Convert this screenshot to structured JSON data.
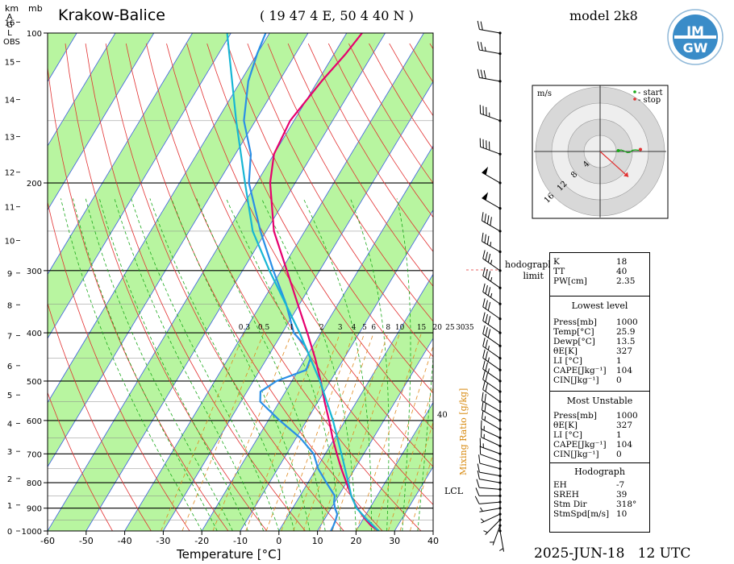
{
  "header": {
    "station": "Krakow-Balice",
    "coords": "( 19 47 4 E, 50 4 40 N )",
    "model": "model 2k8",
    "logo_text": "IMGW",
    "date": "2025-JUN-18",
    "time": "12 UTC"
  },
  "axes": {
    "km_label": "km",
    "agl_label": [
      "A",
      "G",
      "L"
    ],
    "obs_label": "OBS",
    "mb_label": "mb",
    "xlabel": "Temperature [°C]",
    "mixing_label": "Mixing Ratio [g/kg]"
  },
  "chart_data": {
    "type": "line",
    "title": "Krakow-Balice",
    "xlabel": "Temperature [°C]",
    "temp_ticks": [
      -60,
      -50,
      -40,
      -30,
      -20,
      -10,
      0,
      10,
      20,
      30,
      40
    ],
    "pressure_labels": [
      1000,
      900,
      800,
      700,
      600,
      500,
      400,
      300,
      200,
      100
    ],
    "height_ticks_km": [
      0,
      1,
      2,
      3,
      4,
      5,
      6,
      7,
      8,
      9,
      10,
      11,
      12,
      13,
      14,
      15,
      16
    ],
    "mixing_ratio_labels": [
      "0.3",
      "0.5",
      "1",
      "2",
      "3",
      "4",
      "5",
      "6",
      "8",
      "10",
      "15",
      "20",
      "25",
      "30",
      "35"
    ],
    "pressure_range_mb": [
      1000,
      100
    ],
    "temp_range_c": [
      -60,
      40
    ],
    "series": [
      {
        "color": "#e6006e",
        "points_p_t": [
          [
            1000,
            25.9
          ],
          [
            975,
            23
          ],
          [
            950,
            20.8
          ],
          [
            925,
            18.8
          ],
          [
            900,
            16.8
          ],
          [
            875,
            15
          ],
          [
            850,
            13.3
          ],
          [
            800,
            10
          ],
          [
            750,
            6.5
          ],
          [
            700,
            3
          ],
          [
            650,
            -0.6
          ],
          [
            600,
            -4.2
          ],
          [
            550,
            -8.3
          ],
          [
            500,
            -12.5
          ],
          [
            450,
            -17.5
          ],
          [
            400,
            -23.5
          ],
          [
            350,
            -30.5
          ],
          [
            300,
            -38.5
          ],
          [
            250,
            -48
          ],
          [
            200,
            -56.5
          ],
          [
            175,
            -60
          ],
          [
            150,
            -61
          ],
          [
            125,
            -59
          ],
          [
            110,
            -57
          ],
          [
            100,
            -56
          ]
        ]
      },
      {
        "color": "#2a8fe6",
        "points_p_t": [
          [
            1000,
            13.5
          ],
          [
            975,
            13.3
          ],
          [
            950,
            13
          ],
          [
            925,
            12.5
          ],
          [
            900,
            11
          ],
          [
            875,
            9.8
          ],
          [
            850,
            9
          ],
          [
            800,
            4.8
          ],
          [
            750,
            0.5
          ],
          [
            700,
            -3
          ],
          [
            650,
            -9
          ],
          [
            600,
            -17
          ],
          [
            550,
            -25
          ],
          [
            525,
            -26.5
          ],
          [
            500,
            -24
          ],
          [
            475,
            -18
          ],
          [
            450,
            -18.7
          ],
          [
            425,
            -22
          ],
          [
            400,
            -27
          ],
          [
            350,
            -33.5
          ],
          [
            300,
            -42
          ],
          [
            250,
            -51.5
          ],
          [
            200,
            -62
          ],
          [
            175,
            -66
          ],
          [
            150,
            -73
          ],
          [
            125,
            -78
          ],
          [
            110,
            -80
          ],
          [
            100,
            -81
          ]
        ]
      },
      {
        "color": "#17b6d4",
        "points_p_t": [
          [
            1000,
            25.9
          ],
          [
            950,
            21.2
          ],
          [
            900,
            16.6
          ],
          [
            850,
            13.3
          ],
          [
            800,
            10.5
          ],
          [
            700,
            4.2
          ],
          [
            600,
            -3.2
          ],
          [
            500,
            -12.7
          ],
          [
            400,
            -25.5
          ],
          [
            300,
            -43
          ],
          [
            250,
            -53.5
          ],
          [
            200,
            -63
          ],
          [
            150,
            -75
          ],
          [
            100,
            -91
          ]
        ]
      }
    ]
  },
  "hodograph": {
    "unit": "m/s",
    "start_label": "- start",
    "stop_label": "- stop",
    "ring_labels": [
      "4",
      "8",
      "12",
      "16"
    ],
    "limit_label": [
      "hodograph",
      "limit"
    ],
    "trace_uv": [
      [
        0.5,
        0.2
      ],
      [
        1.2,
        0.4
      ],
      [
        2.0,
        0.1
      ],
      [
        2.8,
        -0.3
      ],
      [
        3.4,
        -0.2
      ],
      [
        4.0,
        0.3
      ],
      [
        4.8,
        0.4
      ],
      [
        5.5,
        0.3
      ],
      [
        6.0,
        0.5
      ]
    ],
    "storm_motion_uv": [
      7.0,
      -6.3
    ]
  },
  "indices": {
    "block1": [
      {
        "label": "K",
        "value": "18"
      },
      {
        "label": "TT",
        "value": "40"
      },
      {
        "label": "PW[cm]",
        "value": "2.35"
      }
    ],
    "lowest_title": "Lowest level",
    "lowest": [
      {
        "label": "Press[mb]",
        "value": "1000"
      },
      {
        "label": "Temp[°C]",
        "value": "25.9"
      },
      {
        "label": "Dewp[°C]",
        "value": "13.5"
      },
      {
        "label": "θE[K]",
        "value": "327"
      },
      {
        "label": "LI [°C]",
        "value": "1"
      },
      {
        "label": "CAPE[Jkg⁻¹]",
        "value": "104"
      },
      {
        "label": "CIN[Jkg⁻¹]",
        "value": "0"
      }
    ],
    "unstable_title": "Most Unstable",
    "unstable": [
      {
        "label": "Press[mb]",
        "value": "1000"
      },
      {
        "label": "θE[K]",
        "value": "327"
      },
      {
        "label": "LI [°C]",
        "value": "1"
      },
      {
        "label": "CAPE[Jkg⁻¹]",
        "value": "104"
      },
      {
        "label": "CIN[Jkg⁻¹]",
        "value": "0"
      }
    ],
    "hodo_title": "Hodograph",
    "hodo": [
      {
        "label": "EH",
        "value": "-7"
      },
      {
        "label": "SREH",
        "value": "39"
      },
      {
        "label": "Stm Dir",
        "value": "318°"
      },
      {
        "label": "StmSpd[m/s]",
        "value": "10"
      }
    ]
  },
  "side_labels": {
    "lcl": "LCL",
    "forty": "40"
  },
  "winds": [
    {
      "p": 1000,
      "dir": 170,
      "spd": 5
    },
    {
      "p": 975,
      "dir": 200,
      "spd": 5
    },
    {
      "p": 950,
      "dir": 225,
      "spd": 5
    },
    {
      "p": 925,
      "dir": 245,
      "spd": 5
    },
    {
      "p": 900,
      "dir": 260,
      "spd": 5
    },
    {
      "p": 875,
      "dir": 265,
      "spd": 10
    },
    {
      "p": 850,
      "dir": 270,
      "spd": 10
    },
    {
      "p": 825,
      "dir": 275,
      "spd": 10
    },
    {
      "p": 800,
      "dir": 280,
      "spd": 10
    },
    {
      "p": 775,
      "dir": 280,
      "spd": 10
    },
    {
      "p": 750,
      "dir": 285,
      "spd": 10
    },
    {
      "p": 725,
      "dir": 290,
      "spd": 10
    },
    {
      "p": 700,
      "dir": 290,
      "spd": 15
    },
    {
      "p": 675,
      "dir": 295,
      "spd": 15
    },
    {
      "p": 650,
      "dir": 295,
      "spd": 15
    },
    {
      "p": 625,
      "dir": 300,
      "spd": 15
    },
    {
      "p": 600,
      "dir": 300,
      "spd": 20
    },
    {
      "p": 575,
      "dir": 300,
      "spd": 20
    },
    {
      "p": 550,
      "dir": 305,
      "spd": 20
    },
    {
      "p": 525,
      "dir": 305,
      "spd": 20
    },
    {
      "p": 500,
      "dir": 305,
      "spd": 25
    },
    {
      "p": 475,
      "dir": 305,
      "spd": 25
    },
    {
      "p": 450,
      "dir": 305,
      "spd": 25
    },
    {
      "p": 425,
      "dir": 305,
      "spd": 30
    },
    {
      "p": 400,
      "dir": 305,
      "spd": 30
    },
    {
      "p": 375,
      "dir": 305,
      "spd": 30
    },
    {
      "p": 350,
      "dir": 305,
      "spd": 35
    },
    {
      "p": 325,
      "dir": 305,
      "spd": 35
    },
    {
      "p": 300,
      "dir": 305,
      "spd": 35
    },
    {
      "p": 275,
      "dir": 300,
      "spd": 35
    },
    {
      "p": 250,
      "dir": 300,
      "spd": 40
    },
    {
      "p": 225,
      "dir": 300,
      "spd": 50
    },
    {
      "p": 200,
      "dir": 300,
      "spd": 50
    },
    {
      "p": 175,
      "dir": 290,
      "spd": 40
    },
    {
      "p": 150,
      "dir": 290,
      "spd": 35
    },
    {
      "p": 125,
      "dir": 280,
      "spd": 30
    },
    {
      "p": 110,
      "dir": 280,
      "spd": 25
    },
    {
      "p": 100,
      "dir": 280,
      "spd": 20
    }
  ]
}
